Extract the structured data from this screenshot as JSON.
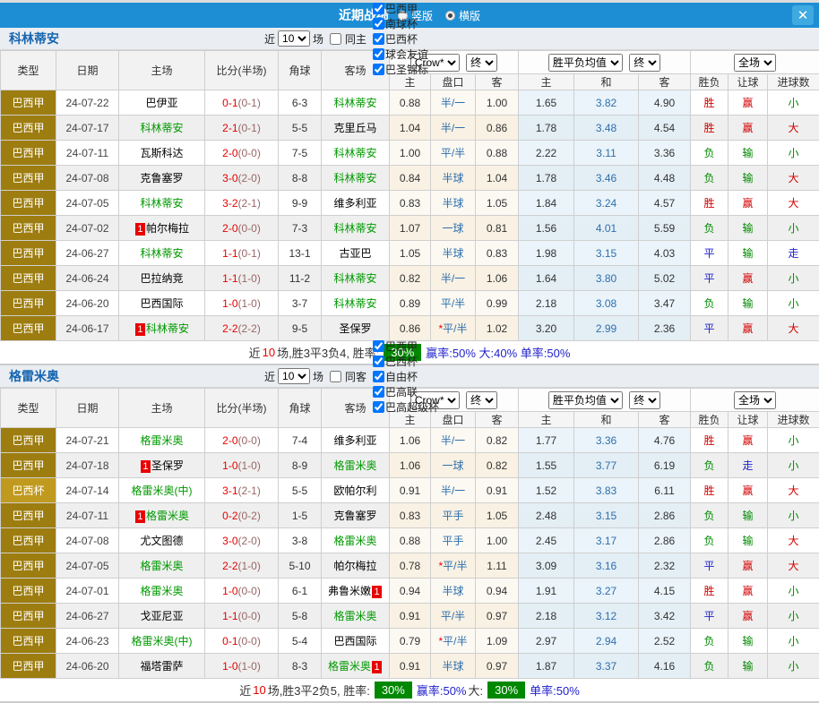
{
  "titlebar": {
    "title": "近期战绩",
    "vertical_label": "竖版",
    "horizontal_label": "横版",
    "vertical_checked": false,
    "horizontal_checked": true,
    "close_icon": "✕"
  },
  "colors": {
    "bar_blue": "#1d8ed4",
    "type_league": "#9d7d10",
    "type_cup": "#c09a1e",
    "win_red": "#d40000",
    "lose_green": "#008a00",
    "draw_blue": "#2222cc",
    "badge_green": "#008800",
    "team_green": "#009900"
  },
  "table": {
    "cols": [
      "类型",
      "日期",
      "主场",
      "比分(半场)",
      "角球",
      "客场"
    ],
    "bookmaker": "Crow*",
    "final": "终",
    "avg": "胜平负均值",
    "fulltime": "全场",
    "sub": [
      "主",
      "盘口",
      "客",
      "主",
      "和",
      "客",
      "胜负",
      "让球",
      "进球数"
    ]
  },
  "filters_common": {
    "near": "近",
    "matches": "场",
    "count": "10"
  },
  "sections": [
    {
      "team": "科林蒂安",
      "same": {
        "label": "同主",
        "checked": false
      },
      "leagues": [
        {
          "label": "巴西甲",
          "checked": true
        },
        {
          "label": "南球杯",
          "checked": true
        },
        {
          "label": "巴西杯",
          "checked": true
        },
        {
          "label": "球会友谊",
          "checked": true
        },
        {
          "label": "巴圣锦标",
          "checked": true
        }
      ],
      "rows": [
        {
          "type": "巴西甲",
          "date": "24-07-22",
          "hb": "",
          "home": "巴伊亚",
          "hg": false,
          "score": "0-1",
          "half": "(0-1)",
          "corner": "6-3",
          "away": "科林蒂安",
          "ag": true,
          "ab": "",
          "c1": "0.88",
          "star": false,
          "pan": "半/一",
          "c2": "1.00",
          "m1": "1.65",
          "m2": "3.82",
          "m3": "4.90",
          "r1": "胜",
          "r2": "赢",
          "r3": "小"
        },
        {
          "type": "巴西甲",
          "date": "24-07-17",
          "hb": "",
          "home": "科林蒂安",
          "hg": true,
          "score": "2-1",
          "half": "(0-1)",
          "corner": "5-5",
          "away": "克里丘马",
          "ag": false,
          "ab": "",
          "c1": "1.04",
          "star": false,
          "pan": "半/一",
          "c2": "0.86",
          "m1": "1.78",
          "m2": "3.48",
          "m3": "4.54",
          "r1": "胜",
          "r2": "赢",
          "r3": "大"
        },
        {
          "type": "巴西甲",
          "date": "24-07-11",
          "hb": "",
          "home": "瓦斯科达",
          "hg": false,
          "score": "2-0",
          "half": "(0-0)",
          "corner": "7-5",
          "away": "科林蒂安",
          "ag": true,
          "ab": "",
          "c1": "1.00",
          "star": false,
          "pan": "平/半",
          "c2": "0.88",
          "m1": "2.22",
          "m2": "3.11",
          "m3": "3.36",
          "r1": "负",
          "r2": "输",
          "r3": "小"
        },
        {
          "type": "巴西甲",
          "date": "24-07-08",
          "hb": "",
          "home": "克鲁塞罗",
          "hg": false,
          "score": "3-0",
          "half": "(2-0)",
          "corner": "8-8",
          "away": "科林蒂安",
          "ag": true,
          "ab": "",
          "c1": "0.84",
          "star": false,
          "pan": "半球",
          "c2": "1.04",
          "m1": "1.78",
          "m2": "3.46",
          "m3": "4.48",
          "r1": "负",
          "r2": "输",
          "r3": "大"
        },
        {
          "type": "巴西甲",
          "date": "24-07-05",
          "hb": "",
          "home": "科林蒂安",
          "hg": true,
          "score": "3-2",
          "half": "(2-1)",
          "corner": "9-9",
          "away": "维多利亚",
          "ag": false,
          "ab": "",
          "c1": "0.83",
          "star": false,
          "pan": "半球",
          "c2": "1.05",
          "m1": "1.84",
          "m2": "3.24",
          "m3": "4.57",
          "r1": "胜",
          "r2": "赢",
          "r3": "大"
        },
        {
          "type": "巴西甲",
          "date": "24-07-02",
          "hb": "1",
          "home": "帕尔梅拉",
          "hg": false,
          "score": "2-0",
          "half": "(0-0)",
          "corner": "7-3",
          "away": "科林蒂安",
          "ag": true,
          "ab": "",
          "c1": "1.07",
          "star": false,
          "pan": "一球",
          "c2": "0.81",
          "m1": "1.56",
          "m2": "4.01",
          "m3": "5.59",
          "r1": "负",
          "r2": "输",
          "r3": "小"
        },
        {
          "type": "巴西甲",
          "date": "24-06-27",
          "hb": "",
          "home": "科林蒂安",
          "hg": true,
          "score": "1-1",
          "half": "(0-1)",
          "corner": "13-1",
          "away": "古亚巴",
          "ag": false,
          "ab": "",
          "c1": "1.05",
          "star": false,
          "pan": "半球",
          "c2": "0.83",
          "m1": "1.98",
          "m2": "3.15",
          "m3": "4.03",
          "r1": "平",
          "r2": "输",
          "r3": "走"
        },
        {
          "type": "巴西甲",
          "date": "24-06-24",
          "hb": "",
          "home": "巴拉纳竞",
          "hg": false,
          "score": "1-1",
          "half": "(1-0)",
          "corner": "11-2",
          "away": "科林蒂安",
          "ag": true,
          "ab": "",
          "c1": "0.82",
          "star": false,
          "pan": "半/一",
          "c2": "1.06",
          "m1": "1.64",
          "m2": "3.80",
          "m3": "5.02",
          "r1": "平",
          "r2": "赢",
          "r3": "小"
        },
        {
          "type": "巴西甲",
          "date": "24-06-20",
          "hb": "",
          "home": "巴西国际",
          "hg": false,
          "score": "1-0",
          "half": "(1-0)",
          "corner": "3-7",
          "away": "科林蒂安",
          "ag": true,
          "ab": "",
          "c1": "0.89",
          "star": false,
          "pan": "平/半",
          "c2": "0.99",
          "m1": "2.18",
          "m2": "3.08",
          "m3": "3.47",
          "r1": "负",
          "r2": "输",
          "r3": "小"
        },
        {
          "type": "巴西甲",
          "date": "24-06-17",
          "hb": "1",
          "home": "科林蒂安",
          "hg": true,
          "score": "2-2",
          "half": "(2-2)",
          "corner": "9-5",
          "away": "圣保罗",
          "ag": false,
          "ab": "",
          "c1": "0.86",
          "star": true,
          "pan": "平/半",
          "c2": "1.02",
          "m1": "3.20",
          "m2": "2.99",
          "m3": "2.36",
          "r1": "平",
          "r2": "赢",
          "r3": "大"
        }
      ],
      "summary": [
        {
          "t": "近",
          "c": "k"
        },
        {
          "t": "10",
          "c": "r"
        },
        {
          "t": "场,胜3平3负4, 胜率:",
          "c": "k"
        },
        {
          "t": "30%",
          "c": "badge"
        },
        {
          "t": "赢率:50% 大:40% 单率:50%",
          "c": "b"
        }
      ]
    },
    {
      "team": "格雷米奥",
      "same": {
        "label": "同客",
        "checked": false
      },
      "leagues": [
        {
          "label": "巴西甲",
          "checked": true
        },
        {
          "label": "巴西杯",
          "checked": true
        },
        {
          "label": "自由杯",
          "checked": true
        },
        {
          "label": "巴高联",
          "checked": true
        },
        {
          "label": "巴高超级杯",
          "checked": true
        }
      ],
      "rows": [
        {
          "type": "巴西甲",
          "date": "24-07-21",
          "hb": "",
          "home": "格雷米奥",
          "hg": true,
          "score": "2-0",
          "half": "(0-0)",
          "corner": "7-4",
          "away": "维多利亚",
          "ag": false,
          "ab": "",
          "c1": "1.06",
          "star": false,
          "pan": "半/一",
          "c2": "0.82",
          "m1": "1.77",
          "m2": "3.36",
          "m3": "4.76",
          "r1": "胜",
          "r2": "赢",
          "r3": "小"
        },
        {
          "type": "巴西甲",
          "date": "24-07-18",
          "hb": "1",
          "home": "圣保罗",
          "hg": false,
          "score": "1-0",
          "half": "(1-0)",
          "corner": "8-9",
          "away": "格雷米奥",
          "ag": true,
          "ab": "",
          "c1": "1.06",
          "star": false,
          "pan": "一球",
          "c2": "0.82",
          "m1": "1.55",
          "m2": "3.77",
          "m3": "6.19",
          "r1": "负",
          "r2": "走",
          "r3": "小"
        },
        {
          "type": "巴西杯",
          "date": "24-07-14",
          "hb": "",
          "home": "格雷米奥(中)",
          "hg": true,
          "score": "3-1",
          "half": "(2-1)",
          "corner": "5-5",
          "away": "欧帕尔利",
          "ag": false,
          "ab": "",
          "c1": "0.91",
          "star": false,
          "pan": "半/一",
          "c2": "0.91",
          "m1": "1.52",
          "m2": "3.83",
          "m3": "6.11",
          "r1": "胜",
          "r2": "赢",
          "r3": "大"
        },
        {
          "type": "巴西甲",
          "date": "24-07-11",
          "hb": "1",
          "home": "格雷米奥",
          "hg": true,
          "score": "0-2",
          "half": "(0-2)",
          "corner": "1-5",
          "away": "克鲁塞罗",
          "ag": false,
          "ab": "",
          "c1": "0.83",
          "star": false,
          "pan": "平手",
          "c2": "1.05",
          "m1": "2.48",
          "m2": "3.15",
          "m3": "2.86",
          "r1": "负",
          "r2": "输",
          "r3": "小"
        },
        {
          "type": "巴西甲",
          "date": "24-07-08",
          "hb": "",
          "home": "尤文图德",
          "hg": false,
          "score": "3-0",
          "half": "(2-0)",
          "corner": "3-8",
          "away": "格雷米奥",
          "ag": true,
          "ab": "",
          "c1": "0.88",
          "star": false,
          "pan": "平手",
          "c2": "1.00",
          "m1": "2.45",
          "m2": "3.17",
          "m3": "2.86",
          "r1": "负",
          "r2": "输",
          "r3": "大"
        },
        {
          "type": "巴西甲",
          "date": "24-07-05",
          "hb": "",
          "home": "格雷米奥",
          "hg": true,
          "score": "2-2",
          "half": "(1-0)",
          "corner": "5-10",
          "away": "帕尔梅拉",
          "ag": false,
          "ab": "",
          "c1": "0.78",
          "star": true,
          "pan": "平/半",
          "c2": "1.11",
          "m1": "3.09",
          "m2": "3.16",
          "m3": "2.32",
          "r1": "平",
          "r2": "赢",
          "r3": "大"
        },
        {
          "type": "巴西甲",
          "date": "24-07-01",
          "hb": "",
          "home": "格雷米奥",
          "hg": true,
          "score": "1-0",
          "half": "(0-0)",
          "corner": "6-1",
          "away": "弗鲁米嫩",
          "ag": false,
          "ab": "1",
          "c1": "0.94",
          "star": false,
          "pan": "半球",
          "c2": "0.94",
          "m1": "1.91",
          "m2": "3.27",
          "m3": "4.15",
          "r1": "胜",
          "r2": "赢",
          "r3": "小"
        },
        {
          "type": "巴西甲",
          "date": "24-06-27",
          "hb": "",
          "home": "戈亚尼亚",
          "hg": false,
          "score": "1-1",
          "half": "(0-0)",
          "corner": "5-8",
          "away": "格雷米奥",
          "ag": true,
          "ab": "",
          "c1": "0.91",
          "star": false,
          "pan": "平/半",
          "c2": "0.97",
          "m1": "2.18",
          "m2": "3.12",
          "m3": "3.42",
          "r1": "平",
          "r2": "赢",
          "r3": "小"
        },
        {
          "type": "巴西甲",
          "date": "24-06-23",
          "hb": "",
          "home": "格雷米奥(中)",
          "hg": true,
          "score": "0-1",
          "half": "(0-0)",
          "corner": "5-4",
          "away": "巴西国际",
          "ag": false,
          "ab": "",
          "c1": "0.79",
          "star": true,
          "pan": "平/半",
          "c2": "1.09",
          "m1": "2.97",
          "m2": "2.94",
          "m3": "2.52",
          "r1": "负",
          "r2": "输",
          "r3": "小"
        },
        {
          "type": "巴西甲",
          "date": "24-06-20",
          "hb": "",
          "home": "福塔雷萨",
          "hg": false,
          "score": "1-0",
          "half": "(1-0)",
          "corner": "8-3",
          "away": "格雷米奥",
          "ag": true,
          "ab": "1",
          "c1": "0.91",
          "star": false,
          "pan": "半球",
          "c2": "0.97",
          "m1": "1.87",
          "m2": "3.37",
          "m3": "4.16",
          "r1": "负",
          "r2": "输",
          "r3": "小"
        }
      ],
      "summary": [
        {
          "t": "近",
          "c": "k"
        },
        {
          "t": "10",
          "c": "r"
        },
        {
          "t": "场,胜3平2负5, 胜率:",
          "c": "k"
        },
        {
          "t": "30%",
          "c": "badge"
        },
        {
          "t": "赢率:50%",
          "c": "b"
        },
        {
          "t": "大:",
          "c": "k"
        },
        {
          "t": "30%",
          "c": "badge"
        },
        {
          "t": "单率:50%",
          "c": "b"
        }
      ]
    }
  ]
}
